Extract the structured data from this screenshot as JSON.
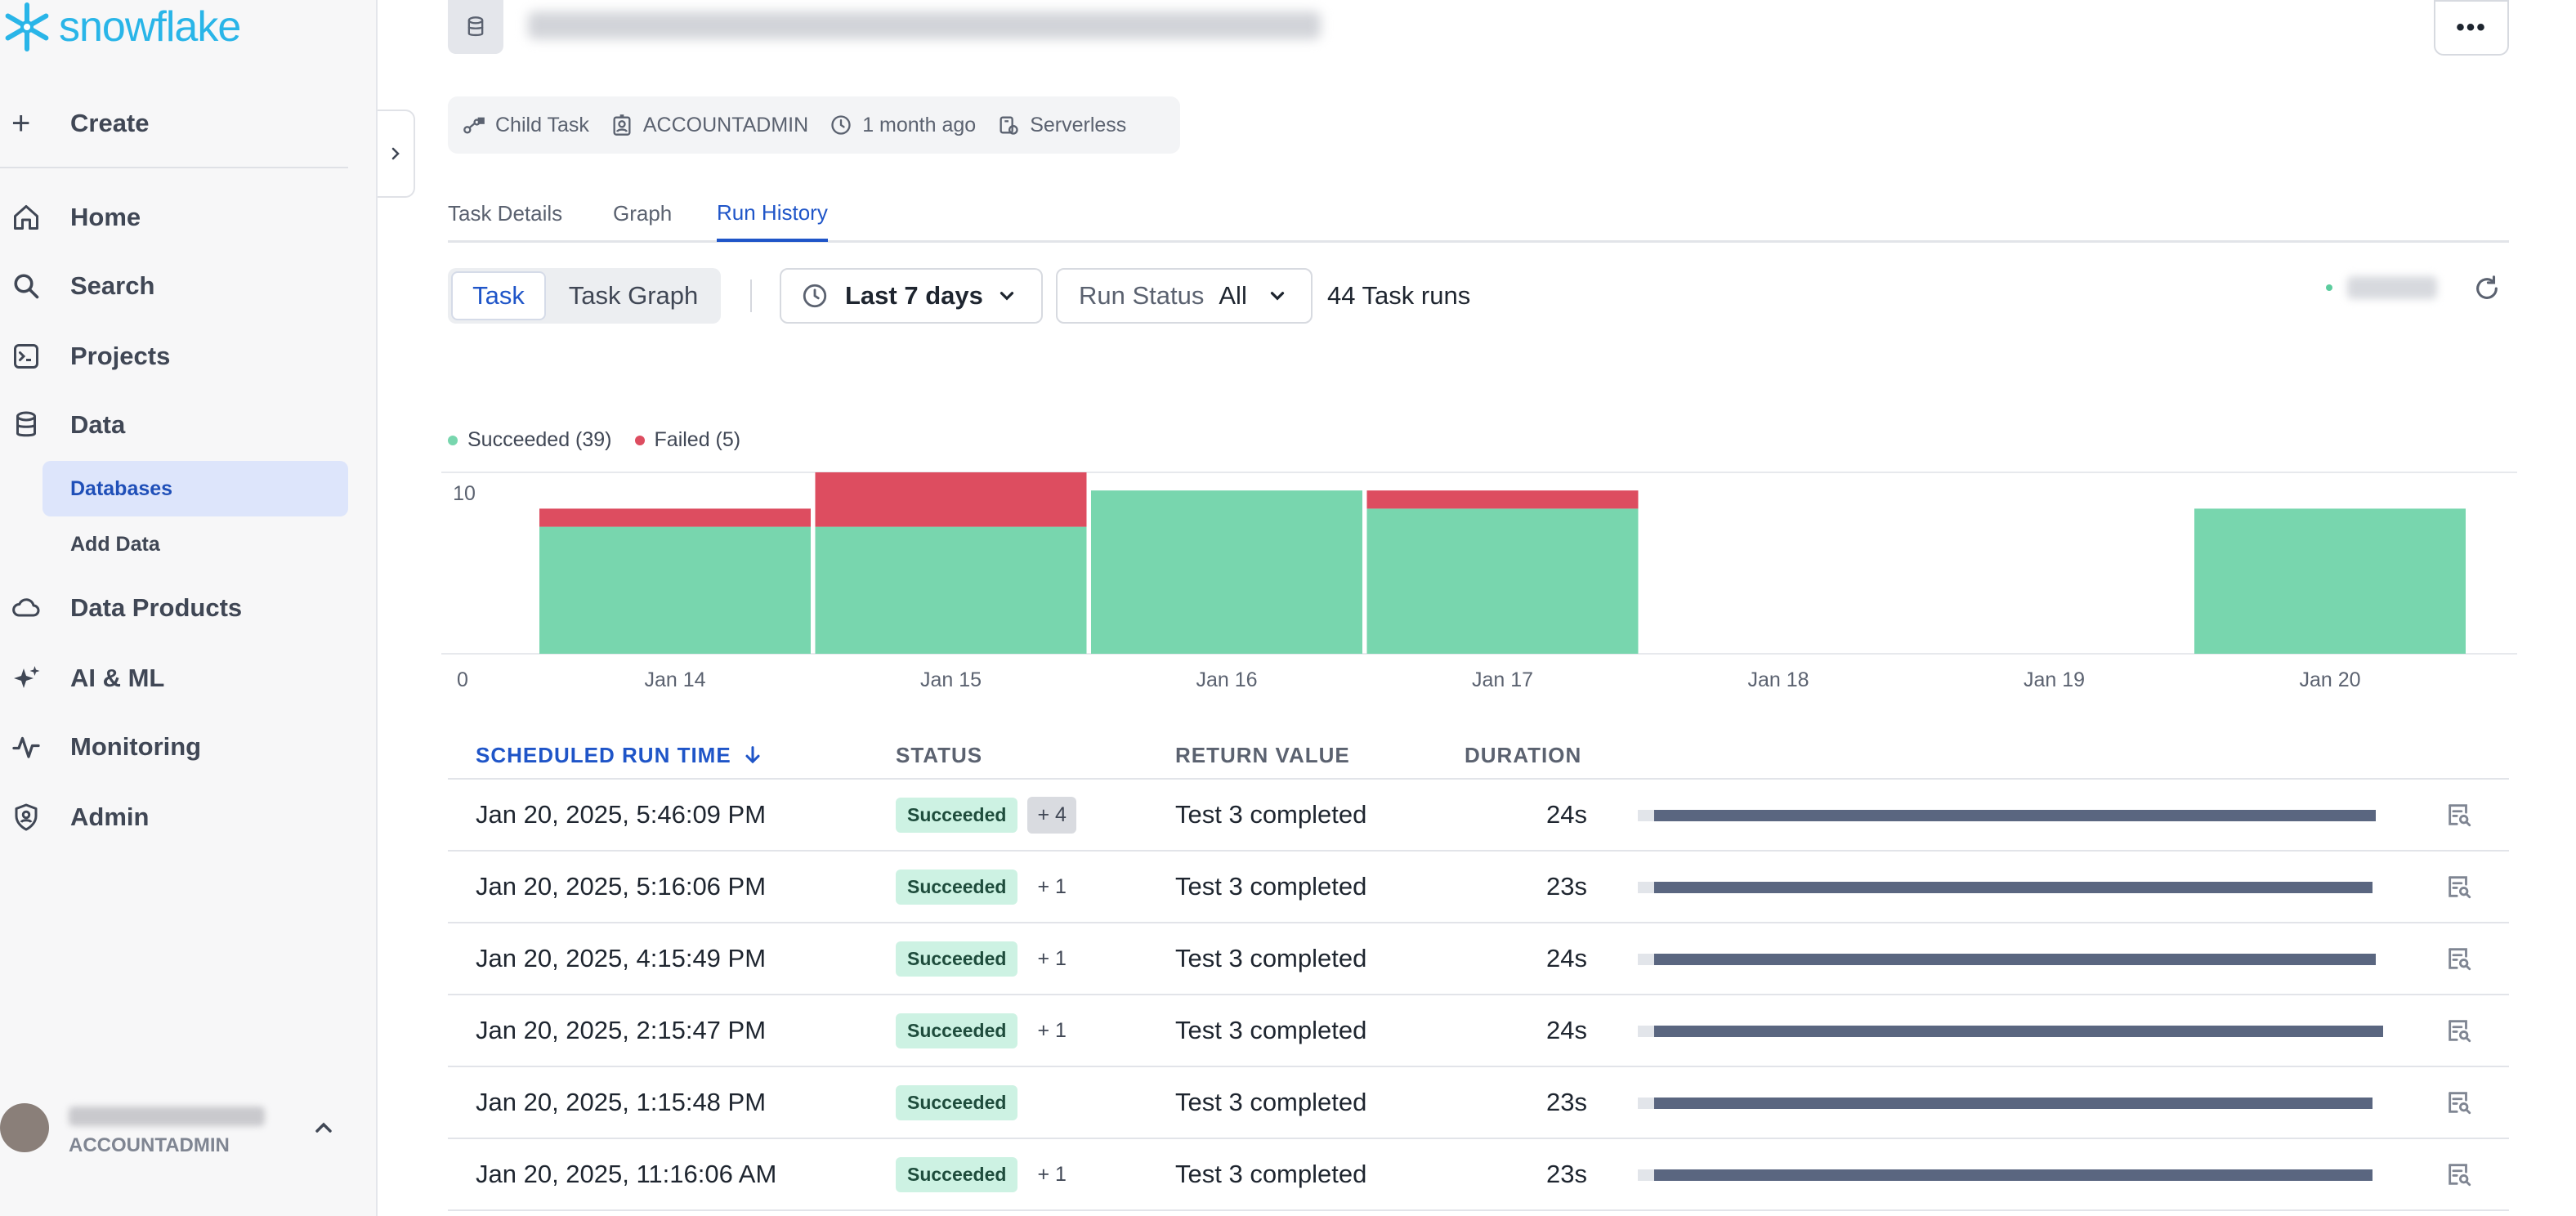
{
  "brand": {
    "name": "snowflake",
    "color": "#29b5e8"
  },
  "sidebar": {
    "create_label": "Create",
    "items": [
      {
        "label": "Home",
        "icon": "home-icon"
      },
      {
        "label": "Search",
        "icon": "search-icon"
      },
      {
        "label": "Projects",
        "icon": "projects-icon"
      },
      {
        "label": "Data",
        "icon": "database-icon"
      },
      {
        "label": "Data Products",
        "icon": "cloud-icon"
      },
      {
        "label": "AI & ML",
        "icon": "sparkle-icon"
      },
      {
        "label": "Monitoring",
        "icon": "activity-icon"
      },
      {
        "label": "Admin",
        "icon": "shield-icon"
      }
    ],
    "sub_items": [
      {
        "label": "Databases",
        "active": true
      },
      {
        "label": "Add Data",
        "active": false
      }
    ],
    "user_role": "ACCOUNTADMIN"
  },
  "header": {
    "more_label": "•••"
  },
  "meta": {
    "type": "Child Task",
    "role": "ACCOUNTADMIN",
    "time": "1 month ago",
    "warehouse": "Serverless"
  },
  "tabs": [
    {
      "label": "Task Details",
      "active": false
    },
    {
      "label": "Graph",
      "active": false
    },
    {
      "label": "Run History",
      "active": true
    }
  ],
  "toolbar": {
    "view_task": "Task",
    "view_graph": "Task Graph",
    "range": "Last 7 days",
    "status_label": "Run Status",
    "status_value": "All",
    "runs_count": "44 Task runs"
  },
  "chart_data": {
    "type": "bar",
    "stacked": true,
    "categories": [
      "Jan 14",
      "Jan 15",
      "Jan 16",
      "Jan 17",
      "Jan 18",
      "Jan 19",
      "Jan 20"
    ],
    "series": [
      {
        "name": "Succeeded (39)",
        "color": "#78d6ae",
        "values": [
          7,
          7,
          9,
          8,
          0,
          0,
          8
        ]
      },
      {
        "name": "Failed (5)",
        "color": "#dd4d60",
        "values": [
          1,
          3,
          0,
          1,
          0,
          0,
          0
        ]
      }
    ],
    "ytick_labels": [
      "0",
      "10"
    ],
    "ylim": [
      0,
      10
    ],
    "legend": "top-left",
    "grid": true
  },
  "table": {
    "columns": [
      "SCHEDULED RUN TIME",
      "STATUS",
      "RETURN VALUE",
      "DURATION"
    ],
    "sort_icon": "arrow-down-icon",
    "rows": [
      {
        "time": "Jan 20, 2025, 5:46:09 PM",
        "status": "Succeeded",
        "extra": "+ 4",
        "extra_highlight": true,
        "return_value": "Test 3 completed",
        "duration": "24s",
        "bar": 0.99
      },
      {
        "time": "Jan 20, 2025, 5:16:06 PM",
        "status": "Succeeded",
        "extra": "+ 1",
        "extra_highlight": false,
        "return_value": "Test 3 completed",
        "duration": "23s",
        "bar": 0.985
      },
      {
        "time": "Jan 20, 2025, 4:15:49 PM",
        "status": "Succeeded",
        "extra": "+ 1",
        "extra_highlight": false,
        "return_value": "Test 3 completed",
        "duration": "24s",
        "bar": 0.99
      },
      {
        "time": "Jan 20, 2025, 2:15:47 PM",
        "status": "Succeeded",
        "extra": "+ 1",
        "extra_highlight": false,
        "return_value": "Test 3 completed",
        "duration": "24s",
        "bar": 1.0
      },
      {
        "time": "Jan 20, 2025, 1:15:48 PM",
        "status": "Succeeded",
        "extra": "",
        "extra_highlight": false,
        "return_value": "Test 3 completed",
        "duration": "23s",
        "bar": 0.985
      },
      {
        "time": "Jan 20, 2025, 11:16:06 AM",
        "status": "Succeeded",
        "extra": "+ 1",
        "extra_highlight": false,
        "return_value": "Test 3 completed",
        "duration": "23s",
        "bar": 0.985
      }
    ]
  }
}
